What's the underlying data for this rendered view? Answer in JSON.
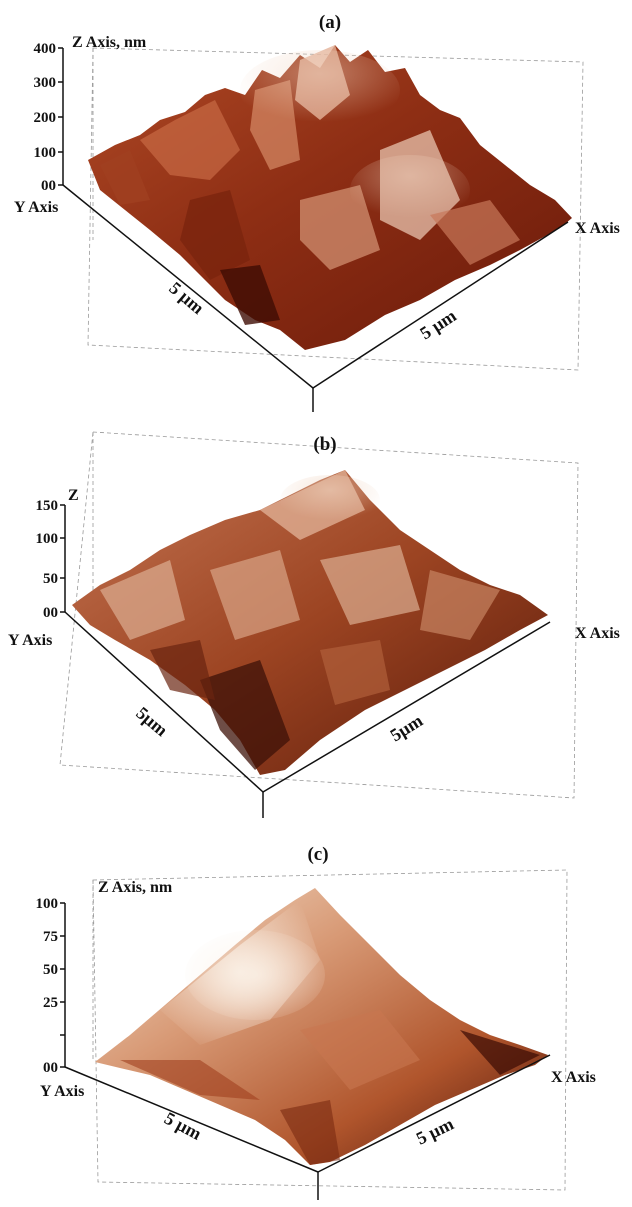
{
  "figure": {
    "panels": [
      {
        "id": "a",
        "label": "(a)",
        "z_axis_label": "Z Axis, nm",
        "y_axis_label": "Y Axis",
        "x_axis_label": "X Axis",
        "z_ticks": [
          "400",
          "300",
          "200",
          "100",
          "00"
        ],
        "y_scale_label": "5 µm",
        "x_scale_label": "5 µm",
        "surface_colors": [
          "#5a140a",
          "#9c3a1c",
          "#d07a52",
          "#efd2bd"
        ]
      },
      {
        "id": "b",
        "label": "(b)",
        "z_axis_label": "Z",
        "y_axis_label": "Y Axis",
        "x_axis_label": "X Axis",
        "z_ticks": [
          "150",
          "100",
          "50",
          "00"
        ],
        "y_scale_label": "5µm",
        "x_scale_label": "5µm",
        "surface_colors": [
          "#4a1608",
          "#a64a24",
          "#d49270",
          "#ead0bc"
        ]
      },
      {
        "id": "c",
        "label": "(c)",
        "z_axis_label": "Z Axis, nm",
        "y_axis_label": "Y Axis",
        "x_axis_label": "X Axis",
        "z_ticks": [
          "100",
          "75",
          "50",
          "25",
          "00"
        ],
        "y_scale_label": "5 µm",
        "x_scale_label": "5 µm",
        "surface_colors": [
          "#3a0e06",
          "#b0542c",
          "#e0a682",
          "#f8ecdf"
        ]
      }
    ]
  }
}
